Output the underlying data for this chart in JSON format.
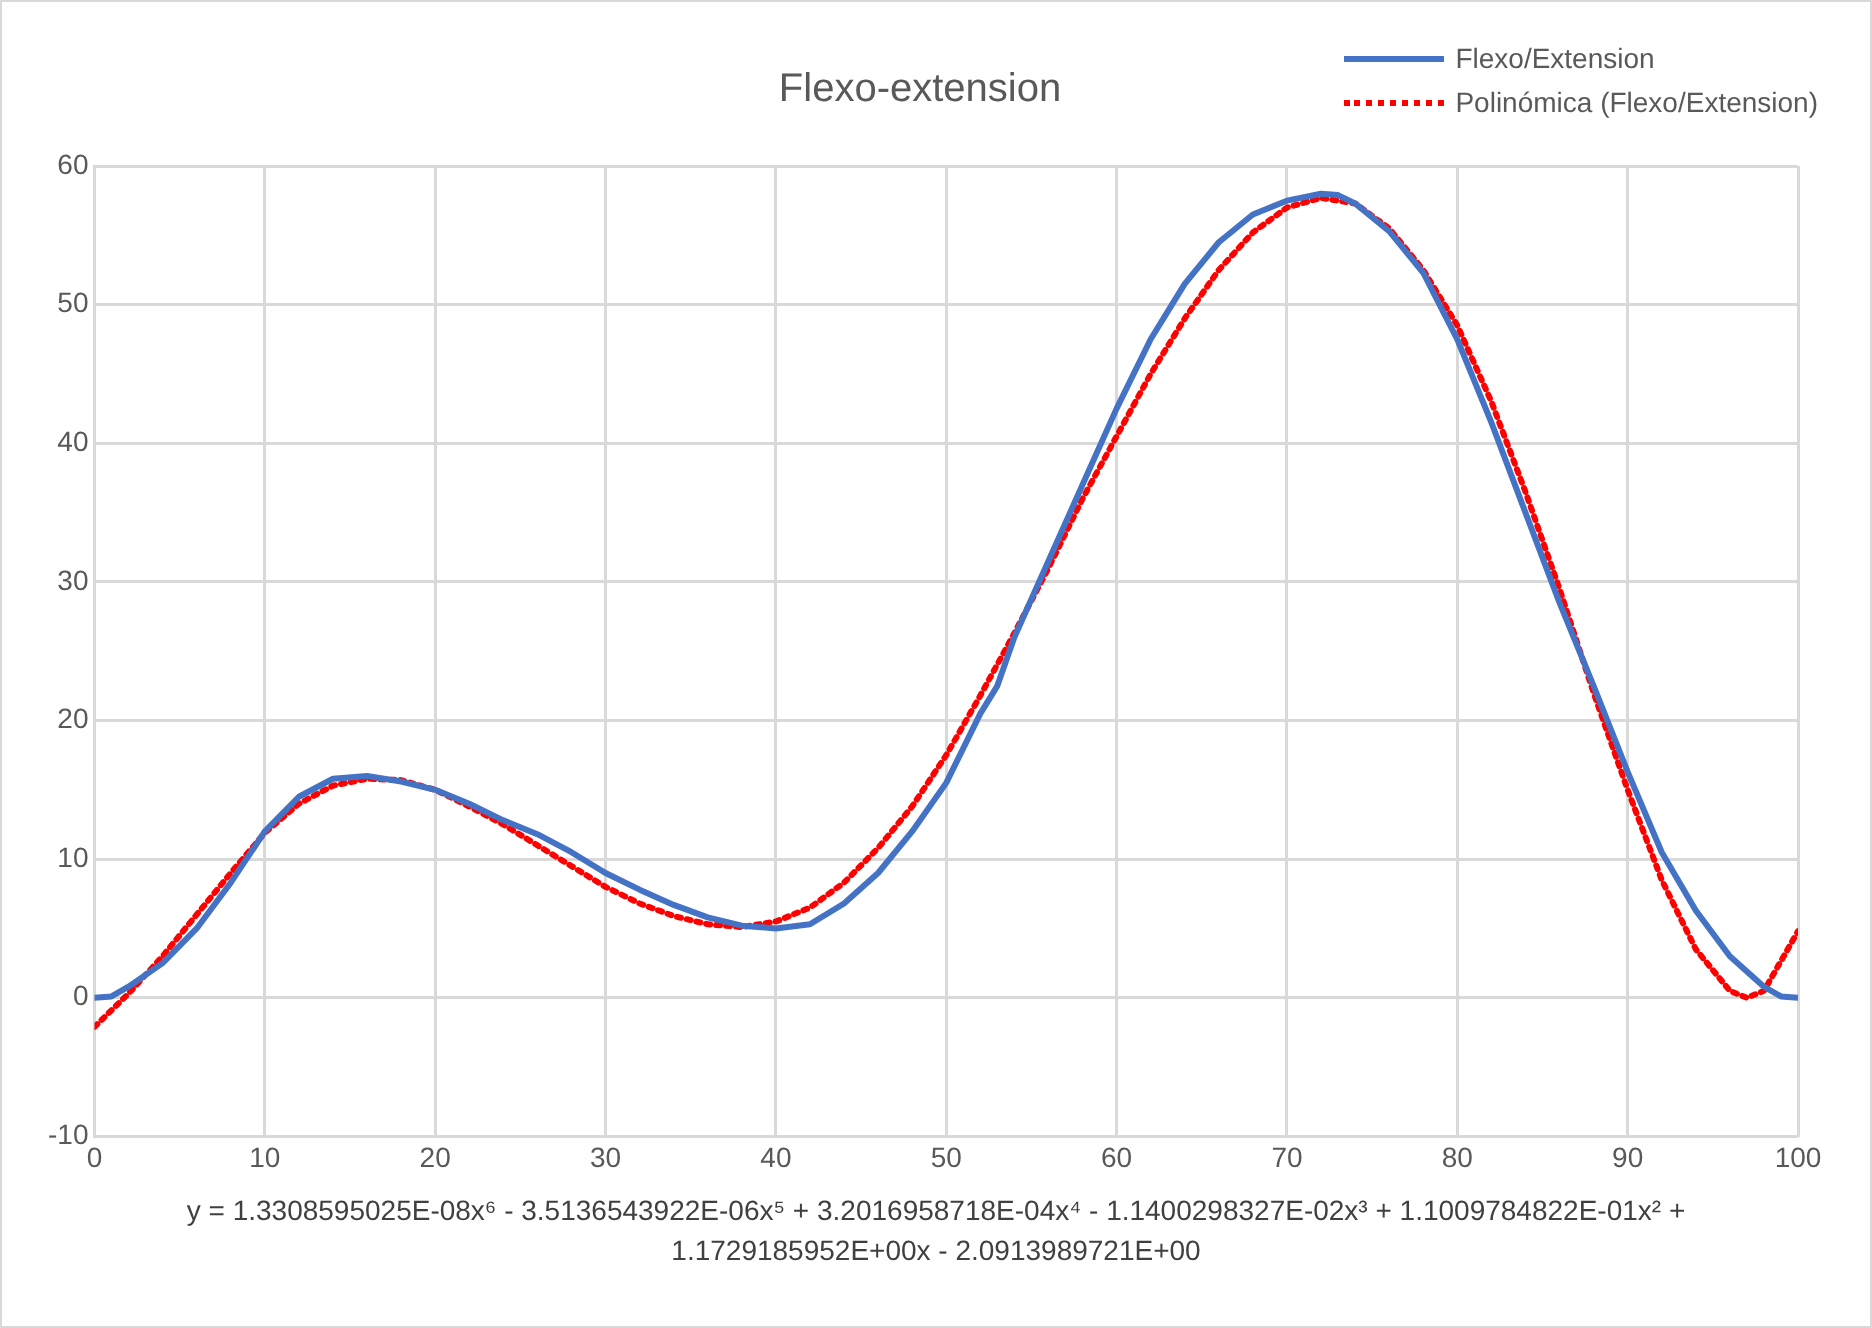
{
  "chart_data": {
    "type": "line",
    "title": "Flexo-extension",
    "xlim": [
      0,
      100
    ],
    "xticks": [
      0,
      10,
      20,
      30,
      40,
      50,
      60,
      70,
      80,
      90,
      100
    ],
    "ylim": [
      -10,
      60
    ],
    "yticks": [
      -10,
      0,
      10,
      20,
      30,
      40,
      50,
      60
    ],
    "grid": true,
    "legend": "top right",
    "marker": "none",
    "series": [
      {
        "name": "Flexo/Extension",
        "color": "#4472c4",
        "line_style": "solid",
        "x": [
          0,
          1,
          2,
          4,
          6,
          8,
          10,
          12,
          14,
          16,
          18,
          20,
          22,
          24,
          26,
          28,
          30,
          32,
          34,
          36,
          38,
          40,
          42,
          44,
          46,
          48,
          50,
          52,
          53,
          54,
          56,
          58,
          60,
          62,
          64,
          66,
          68,
          70,
          72,
          73,
          74,
          76,
          78,
          80,
          82,
          84,
          86,
          88,
          90,
          92,
          94,
          96,
          98,
          99,
          100
        ],
        "values": [
          0,
          0.1,
          0.8,
          2.5,
          5,
          8.3,
          12,
          14.5,
          15.8,
          16,
          15.6,
          15,
          14,
          12.8,
          11.8,
          10.5,
          9,
          7.8,
          6.7,
          5.8,
          5.2,
          5,
          5.3,
          6.8,
          9,
          12,
          15.5,
          20.5,
          22.5,
          26,
          31.5,
          37,
          42.5,
          47.5,
          51.5,
          54.5,
          56.5,
          57.5,
          58,
          57.9,
          57.3,
          55.3,
          52.3,
          47.5,
          41.5,
          35,
          28.5,
          22.5,
          16.3,
          10.5,
          6.3,
          3,
          0.8,
          0.1,
          0
        ]
      },
      {
        "name": "Polinómica (Flexo/Extension)",
        "color": "#ff0000",
        "line_style": "dotted",
        "x": [
          0,
          2,
          4,
          6,
          8,
          10,
          12,
          14,
          16,
          18,
          20,
          22,
          24,
          26,
          28,
          30,
          32,
          34,
          36,
          38,
          40,
          42,
          44,
          46,
          48,
          50,
          52,
          54,
          56,
          58,
          60,
          62,
          64,
          66,
          68,
          70,
          72,
          74,
          76,
          78,
          80,
          82,
          84,
          86,
          88,
          90,
          92,
          94,
          96,
          97,
          98,
          100
        ],
        "values": [
          -2.1,
          0.3,
          3,
          6,
          9,
          11.9,
          14,
          15.3,
          15.8,
          15.7,
          15,
          13.8,
          12.5,
          11,
          9.5,
          8,
          6.8,
          5.9,
          5.3,
          5.1,
          5.5,
          6.5,
          8.3,
          10.8,
          13.8,
          17.5,
          21.8,
          26.3,
          31,
          36,
          40.5,
          45,
          49,
          52.5,
          55.2,
          57,
          57.7,
          57.3,
          55.5,
          52.5,
          48.5,
          43,
          36.5,
          29.5,
          22,
          15,
          8.5,
          3.5,
          0.5,
          0,
          0.5,
          4.8
        ]
      }
    ],
    "annotations": [
      "y = 1.3308595025E-08x⁶ - 3.5136543922E-06x⁵ + 3.2016958718E-04x⁴ - 1.1400298327E-02x³ + 1.1009784822E-01x² + 1.1729185952E+00x - 2.0913989721E+00"
    ]
  }
}
